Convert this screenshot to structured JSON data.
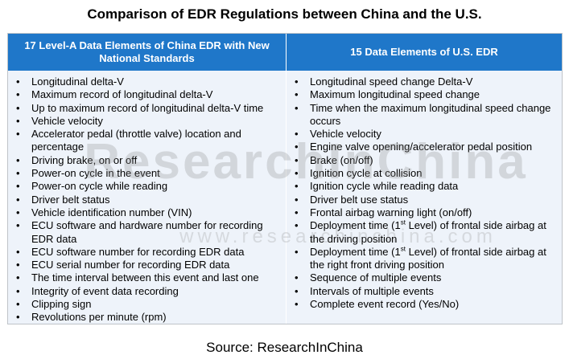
{
  "title": "Comparison of EDR Regulations between China and the U.S.",
  "table": {
    "left_header": "17 Level-A Data Elements of China EDR with New National Standards",
    "right_header": "15 Data Elements of U.S. EDR",
    "left_items": [
      "Longitudinal delta-V",
      "Maximum record of longitudinal delta-V",
      "Up to maximum record of longitudinal delta-V time",
      "Vehicle velocity",
      "Accelerator pedal (throttle valve) location and percentage",
      "Driving brake, on or off",
      "Power-on cycle in the event",
      "Power-on cycle while reading",
      "Driver belt status",
      "Vehicle identification number (VIN)",
      "ECU software and hardware number for recording EDR data",
      "ECU software number for recording EDR data",
      "ECU serial number for recording EDR data",
      "The time interval between this event and last one",
      "Integrity of event data recording",
      "Clipping sign",
      "Revolutions per minute (rpm)"
    ],
    "right_items": [
      "Longitudinal speed change Delta-V",
      "Maximum longitudinal speed change",
      "Time when the maximum longitudinal speed change occurs",
      "Vehicle velocity",
      "Engine valve opening/accelerator pedal position",
      "Brake (on/off)",
      "Ignition cycle at collision",
      "Ignition cycle while reading data",
      "Driver belt use status",
      "Frontal airbag warning light (on/off)",
      {
        "pre": "Deployment time (1",
        "sup": "st",
        "post": " Level) of frontal side airbag at the driving position"
      },
      {
        "pre": "Deployment time (1",
        "sup": "st",
        "post": " Level) of frontal side airbag at the right front driving position"
      },
      "Sequence of multiple events",
      "Intervals of multiple events",
      "Complete event record (Yes/No)"
    ]
  },
  "bullet_char": "•",
  "watermark": {
    "main": "ResearchInChina",
    "url": "www.researchinchina.com"
  },
  "source": "Source: ResearchInChina",
  "colors": {
    "header_bg": "#1f77c9",
    "body_bg": "#eef3fa",
    "watermark": "#8c8c8c"
  }
}
